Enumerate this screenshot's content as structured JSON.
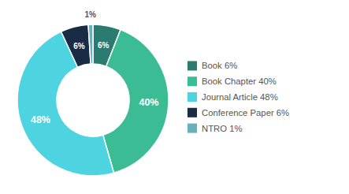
{
  "chart_data": {
    "type": "donut",
    "categories": [
      "Book 6%",
      "Book Chapter 40%",
      "Journal Article 48%",
      "Conference Paper 6%",
      "NTRO 1%"
    ],
    "values": [
      6,
      40,
      48,
      6,
      1
    ],
    "value_labels": [
      "6%",
      "40%",
      "48%",
      "6%",
      "1%"
    ],
    "colors": [
      "#2a7b70",
      "#3bbc94",
      "#4dd4e0",
      "#1a2b45",
      "#6ab0bc"
    ],
    "data_labels": true,
    "legend": "right"
  }
}
